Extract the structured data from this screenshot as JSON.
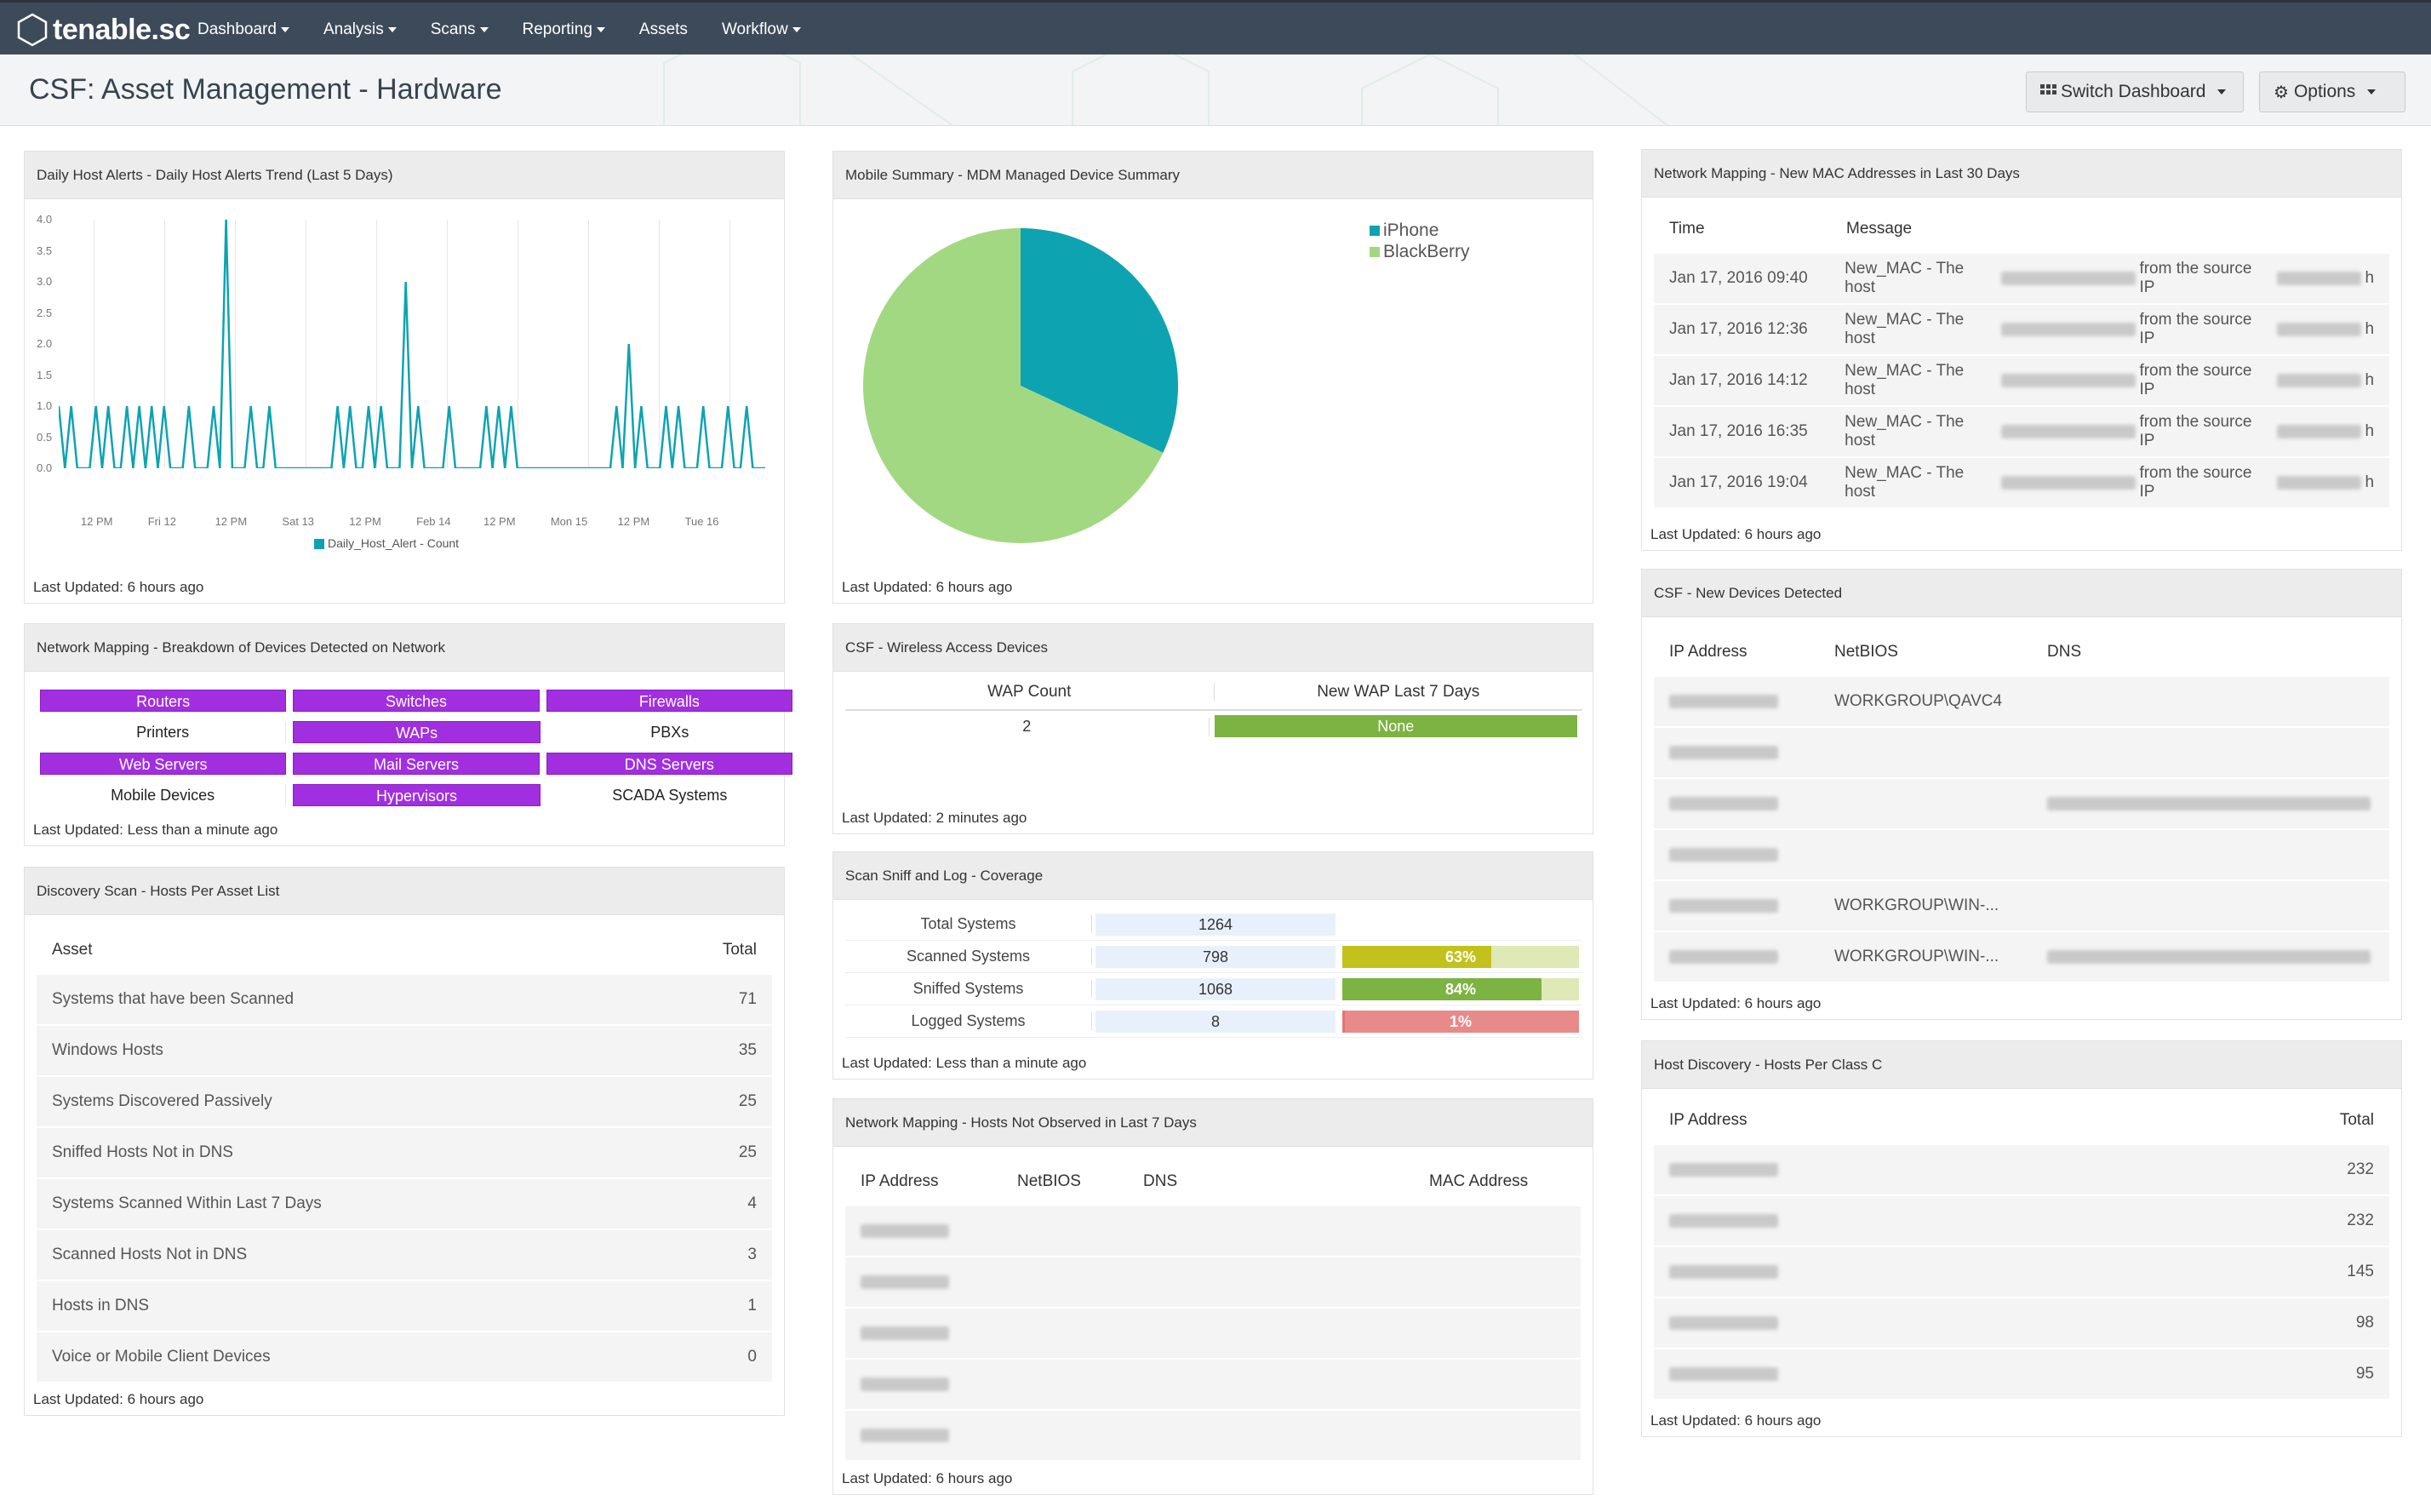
{
  "app": {
    "logo_text": "tenable.sc"
  },
  "nav": [
    "Dashboard",
    "Analysis",
    "Scans",
    "Reporting",
    "Assets",
    "Workflow"
  ],
  "nav_dropdown": [
    true,
    true,
    true,
    true,
    false,
    true
  ],
  "title": "CSF: Asset Management - Hardware",
  "buttons": {
    "switch_dashboard": "Switch Dashboard",
    "options": "Options"
  },
  "colors": {
    "topbar": "#3d4a5a",
    "accent_teal": "#0ea3b1",
    "pie_green": "#a3d883",
    "purple": "#a12fe0",
    "bar_green": "#7cb342",
    "bar_yellow": "#c3c21c",
    "bar_red": "#e57373"
  },
  "daily_alerts": {
    "header": "Daily Host Alerts - Daily Host Alerts Trend (Last 5 Days)",
    "updated": "Last Updated: 6 hours ago",
    "chart_data": {
      "type": "line",
      "title": "",
      "yticks": [
        "4.0",
        "3.5",
        "3.0",
        "2.5",
        "2.0",
        "1.5",
        "1.0",
        "0.5",
        "0.0"
      ],
      "xticks": [
        "12 PM",
        "Fri 12",
        "12 PM",
        "Sat 13",
        "12 PM",
        "Feb 14",
        "12 PM",
        "Mon 15",
        "12 PM",
        "Tue 16"
      ],
      "ylim": [
        0,
        4
      ],
      "series": [
        {
          "name": "Daily_Host_Alert - Count",
          "values": [
            1,
            0,
            1,
            0,
            0,
            0,
            1,
            0,
            1,
            0,
            0,
            1,
            0,
            1,
            0,
            1,
            0,
            1,
            0,
            0,
            0,
            1,
            0,
            0,
            0,
            1,
            0,
            4,
            0,
            0,
            0,
            1,
            0,
            0,
            1,
            0,
            0,
            0,
            0,
            0,
            0,
            0,
            0,
            0,
            0,
            1,
            0,
            1,
            0,
            0,
            1,
            0,
            1,
            0,
            0,
            0,
            3,
            0,
            1,
            0,
            0,
            0,
            0,
            1,
            0,
            0,
            0,
            0,
            0,
            1,
            0,
            1,
            0,
            1,
            0,
            0,
            0,
            0,
            0,
            0,
            0,
            0,
            0,
            0,
            0,
            0,
            0,
            0,
            0,
            0,
            1,
            0,
            2,
            0,
            1,
            0,
            0,
            0,
            1,
            0,
            1,
            0,
            0,
            0,
            1,
            0,
            0,
            0,
            1,
            0,
            0,
            1,
            0,
            0,
            0
          ]
        }
      ],
      "legend": "bottom"
    }
  },
  "breakdown": {
    "header": "Network Mapping - Breakdown of Devices Detected on Network",
    "updated": "Last Updated: Less than a minute ago",
    "rows": [
      [
        {
          "label": "Routers",
          "on": true
        },
        {
          "label": "Switches",
          "on": true
        },
        {
          "label": "Firewalls",
          "on": true
        }
      ],
      [
        {
          "label": "Printers",
          "on": false
        },
        {
          "label": "WAPs",
          "on": true
        },
        {
          "label": "PBXs",
          "on": false
        }
      ],
      [
        {
          "label": "Web Servers",
          "on": true
        },
        {
          "label": "Mail Servers",
          "on": true
        },
        {
          "label": "DNS Servers",
          "on": true
        }
      ],
      [
        {
          "label": "Mobile Devices",
          "on": false
        },
        {
          "label": "Hypervisors",
          "on": true
        },
        {
          "label": "SCADA Systems",
          "on": false
        }
      ]
    ]
  },
  "discovery": {
    "header": "Discovery Scan - Hosts Per Asset List",
    "updated": "Last Updated: 6 hours ago",
    "col_asset": "Asset",
    "col_total": "Total",
    "rows": [
      [
        "Systems that have been Scanned",
        "71"
      ],
      [
        "Windows Hosts",
        "35"
      ],
      [
        "Systems Discovered Passively",
        "25"
      ],
      [
        "Sniffed Hosts Not in DNS",
        "25"
      ],
      [
        "Systems Scanned Within Last 7 Days",
        "4"
      ],
      [
        "Scanned Hosts Not in DNS",
        "3"
      ],
      [
        "Hosts in DNS",
        "1"
      ],
      [
        "Voice or Mobile Client Devices",
        "0"
      ]
    ]
  },
  "mobile": {
    "header": "Mobile Summary - MDM Managed Device Summary",
    "updated": "Last Updated: 6 hours ago",
    "chart_data": {
      "type": "pie",
      "labels": [
        "iPhone",
        "BlackBerry"
      ],
      "values": [
        32,
        68
      ],
      "legend": "top-right"
    }
  },
  "wireless": {
    "header": "CSF - Wireless Access Devices",
    "updated": "Last Updated: 2 minutes ago",
    "col1": "WAP Count",
    "col2": "New WAP Last 7 Days",
    "val1": "2",
    "val2": "None"
  },
  "coverage": {
    "header": "Scan Sniff and Log - Coverage",
    "updated": "Last Updated: Less than a minute ago",
    "rows": [
      {
        "label": "Total Systems",
        "value": "1264",
        "pct": null,
        "pct_label": ""
      },
      {
        "label": "Scanned Systems",
        "value": "798",
        "pct": 63,
        "pct_label": "63%",
        "color": "#c3c21c"
      },
      {
        "label": "Sniffed Systems",
        "value": "1068",
        "pct": 84,
        "pct_label": "84%",
        "color": "#7cb342"
      },
      {
        "label": "Logged Systems",
        "value": "8",
        "pct": 1,
        "pct_label": "1%",
        "color": "#e57373"
      }
    ]
  },
  "not_observed": {
    "header": "Network Mapping - Hosts Not Observed in Last 7 Days",
    "updated": "Last Updated: 6 hours ago",
    "cols": [
      "IP Address",
      "NetBIOS",
      "DNS",
      "MAC Address"
    ],
    "row_count": 5
  },
  "new_mac": {
    "header": "Network Mapping - New MAC Addresses in Last 30 Days",
    "updated": "Last Updated: 6 hours ago",
    "col_time": "Time",
    "col_msg": "Message",
    "rows": [
      {
        "time": "Jan 17, 2016 09:40",
        "m1": "New_MAC - The host",
        "m2": "from the source IP",
        "m3": "h"
      },
      {
        "time": "Jan 17, 2016 12:36",
        "m1": "New_MAC - The host",
        "m2": "from the source IP",
        "m3": "h"
      },
      {
        "time": "Jan 17, 2016 14:12",
        "m1": "New_MAC - The host",
        "m2": "from the source IP",
        "m3": "h"
      },
      {
        "time": "Jan 17, 2016 16:35",
        "m1": "New_MAC - The host",
        "m2": "from the source IP",
        "m3": "h"
      },
      {
        "time": "Jan 17, 2016 19:04",
        "m1": "New_MAC - The host",
        "m2": "from the source IP",
        "m3": "h"
      }
    ]
  },
  "new_devices": {
    "header": "CSF - New Devices Detected",
    "updated": "Last Updated: 6 hours ago",
    "cols": [
      "IP Address",
      "NetBIOS",
      "DNS"
    ],
    "rows": [
      {
        "netbios": "WORKGROUP\\QAVC4",
        "dns": false
      },
      {
        "netbios": "",
        "dns": false
      },
      {
        "netbios": "",
        "dns": true
      },
      {
        "netbios": "",
        "dns": false
      },
      {
        "netbios": "WORKGROUP\\WIN-...",
        "dns": false
      },
      {
        "netbios": "WORKGROUP\\WIN-...",
        "dns": true
      }
    ]
  },
  "class_c": {
    "header": "Host Discovery - Hosts Per Class C",
    "updated": "Last Updated: 6 hours ago",
    "col_ip": "IP Address",
    "col_total": "Total",
    "rows": [
      "232",
      "232",
      "145",
      "98",
      "95"
    ]
  }
}
